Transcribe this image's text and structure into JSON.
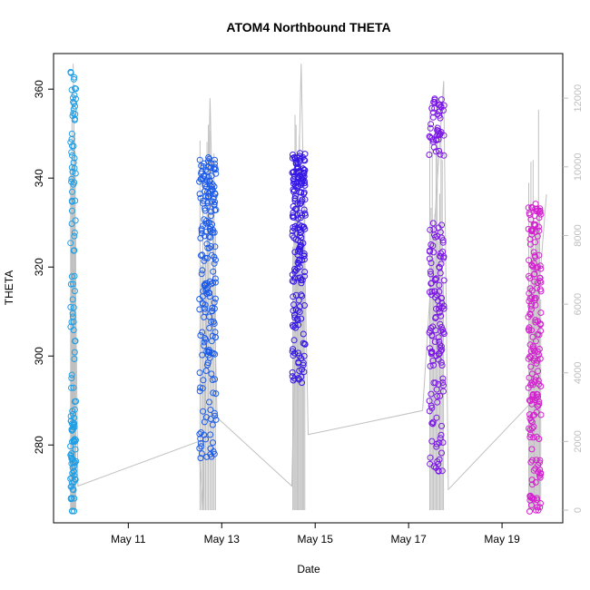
{
  "chart_data": {
    "type": "scatter",
    "title": "ATOM4 Northbound THETA",
    "xlabel": "Date",
    "ylabel": "THETA",
    "x_ticks": [
      {
        "day": 11,
        "label": "May 11"
      },
      {
        "day": 13,
        "label": "May 13"
      },
      {
        "day": 15,
        "label": "May 15"
      },
      {
        "day": 17,
        "label": "May 17"
      },
      {
        "day": 19,
        "label": "May 19"
      }
    ],
    "xlim": [
      9.4,
      20.3
    ],
    "ylim": [
      262.5,
      368
    ],
    "y_ticks": [
      280,
      300,
      320,
      340,
      360
    ],
    "y2lim": [
      -370,
      13300
    ],
    "y2_ticks": [
      0,
      2000,
      4000,
      6000,
      8000,
      10000,
      12000
    ],
    "grid": false,
    "legend": "none",
    "clusters": [
      {
        "day": 9.82,
        "width": 0.12,
        "color": "#1e9fe6",
        "ranges": [
          [
            265,
            288,
            0.45
          ],
          [
            288,
            345,
            0.35
          ],
          [
            345,
            364,
            0.2
          ]
        ],
        "n": 130
      },
      {
        "day": 12.7,
        "width": 0.36,
        "color": "#1c5be8",
        "ranges": [
          [
            276,
            300,
            0.2
          ],
          [
            300,
            334,
            0.5
          ],
          [
            334,
            345,
            0.3
          ]
        ],
        "n": 210
      },
      {
        "day": 14.65,
        "width": 0.28,
        "color": "#3517e6",
        "ranges": [
          [
            294,
            316,
            0.25
          ],
          [
            316,
            336,
            0.4
          ],
          [
            336,
            346,
            0.35
          ]
        ],
        "n": 200
      },
      {
        "day": 17.6,
        "width": 0.32,
        "color": "#7a16e6",
        "ranges": [
          [
            274,
            300,
            0.25
          ],
          [
            300,
            330,
            0.5
          ],
          [
            345,
            359,
            0.25
          ]
        ],
        "n": 180
      },
      {
        "day": 19.7,
        "width": 0.28,
        "color": "#d41ed0",
        "ranges": [
          [
            265,
            290,
            0.3
          ],
          [
            290,
            322,
            0.5
          ],
          [
            322,
            335,
            0.2
          ]
        ],
        "n": 190
      }
    ],
    "secondary_series": {
      "name": "",
      "color": "#c0c0c0",
      "x": [
        9.82,
        9.92,
        12.5,
        12.6,
        12.75,
        12.9,
        14.5,
        14.7,
        14.85,
        17.3,
        17.75,
        17.85,
        19.6,
        19.95
      ],
      "y": [
        13000,
        700,
        2000,
        0,
        12000,
        2700,
        700,
        13000,
        2200,
        2900,
        12500,
        600,
        3100,
        9200
      ]
    }
  }
}
